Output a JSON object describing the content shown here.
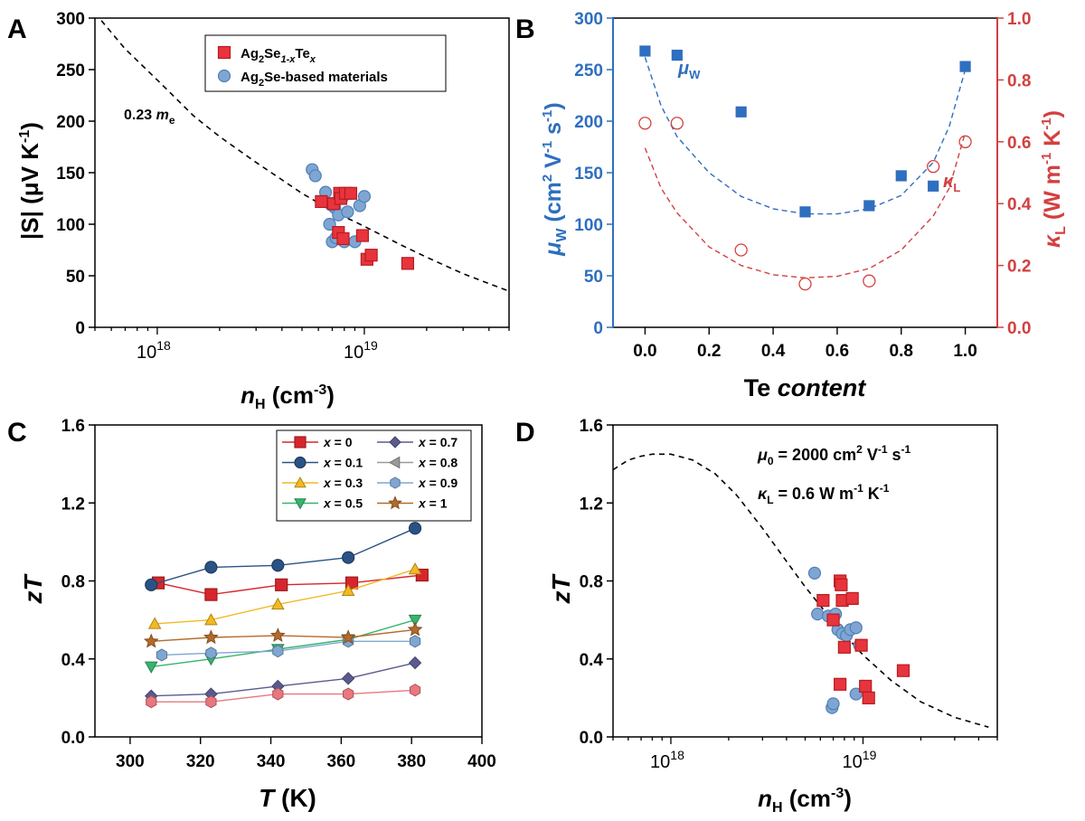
{
  "chart_data": [
    {
      "panel": "A",
      "type": "scatter",
      "xscale": "log",
      "xlim": [
        5e+17,
        5e+19
      ],
      "ylim": [
        0,
        300
      ],
      "xlabel_main": "n",
      "xlabel_sub": "H",
      "xlabel_unit": " (cm",
      "xlabel_exp": "-3",
      "xlabel_close": ")",
      "ylabel": "|S| (μV K",
      "ylabel_exp": "-1",
      "ylabel_close": ")",
      "xticks": [
        {
          "value": 1e+18,
          "base": "10",
          "exp": "18"
        },
        {
          "value": 1e+19,
          "base": "10",
          "exp": "19"
        }
      ],
      "yticks": [
        0,
        50,
        100,
        150,
        200,
        250,
        300
      ],
      "annotation": {
        "text": "0.23 ",
        "italic": "m",
        "sub": "e"
      },
      "legend": [
        {
          "label_main": "Ag",
          "sub1": "2",
          "mid": "Se",
          "sub2": "1-x",
          "mid2": "Te",
          "sub3": "x",
          "color": "#e8343c",
          "marker": "square"
        },
        {
          "label": "Ag2Se-based materials",
          "label_main": "Ag",
          "sub1": "2",
          "rest": "Se-based materials",
          "color": "#7fa6d3",
          "marker": "circle"
        }
      ],
      "series": [
        {
          "name": "Ag2Se-based materials",
          "marker": "circle",
          "color": "#7fa6d3",
          "x": [
            5.6e+18,
            5.8e+18,
            6.5e+18,
            6.8e+18,
            7e+18,
            7.2e+18,
            7.5e+18,
            8e+18,
            8.3e+18,
            8.6e+18,
            9.5e+18,
            9e+18,
            1e+19,
            7.8e+18,
            6.9e+18,
            7.3e+18
          ],
          "y": [
            153,
            147,
            131,
            100,
            83,
            116,
            109,
            83,
            112,
            130,
            118,
            83,
            127,
            125,
            119,
            87
          ]
        },
        {
          "name": "Ag2Se1-xTex",
          "marker": "square",
          "color": "#e8343c",
          "x": [
            6.2e+18,
            7.1e+18,
            7.6e+18,
            7.7e+18,
            8.1e+18,
            8.6e+18,
            9.8e+18,
            1.03e+19,
            1.08e+19,
            1.62e+19,
            7.5e+18,
            7.9e+18
          ],
          "y": [
            122,
            120,
            130,
            125,
            130,
            130,
            89,
            66,
            70,
            62,
            92,
            86
          ]
        }
      ],
      "curve": {
        "type": "dashed",
        "x": [
          5e+17,
          7e+17,
          1e+18,
          1.5e+18,
          2e+18,
          3e+18,
          5e+18,
          7e+18,
          1e+19,
          1.5e+19,
          2e+19,
          3e+19,
          5e+19
        ],
        "y": [
          305,
          270,
          240,
          205,
          185,
          160,
          130,
          113,
          98,
          80,
          68,
          52,
          35
        ]
      }
    },
    {
      "panel": "B",
      "type": "scatter",
      "xlim": [
        -0.1,
        1.1
      ],
      "ylim": [
        0,
        300
      ],
      "ylim2": [
        0,
        1.0
      ],
      "xlabel_main": "Te ",
      "xlabel_italic": "content",
      "ylabel_main": "μ",
      "ylabel_sub": "W",
      "ylabel_rest": " (cm",
      "ylabel_e1": "2",
      "ylabel_r2": " V",
      "ylabel_e2": "-1",
      "ylabel_r3": " s",
      "ylabel_e3": "-1",
      "ylabel_close": ")",
      "ylabel2_main": "κ",
      "ylabel2_sub": "L",
      "ylabel2_rest": " (W m",
      "ylabel2_e1": "-1",
      "ylabel2_r2": " K",
      "ylabel2_e2": "-1",
      "ylabel2_close": ")",
      "xticks": [
        "0.0",
        "0.2",
        "0.4",
        "0.6",
        "0.8",
        "1.0"
      ],
      "xtick_values": [
        0,
        0.2,
        0.4,
        0.6,
        0.8,
        1.0
      ],
      "yticks": [
        0,
        50,
        100,
        150,
        200,
        250,
        300
      ],
      "yticks2": [
        "0.0",
        "0.2",
        "0.4",
        "0.6",
        "0.8",
        "1.0"
      ],
      "ytick2_values": [
        0,
        0.2,
        0.4,
        0.6,
        0.8,
        1.0
      ],
      "label_mu": {
        "main": "μ",
        "sub": "W"
      },
      "label_kappa": {
        "main": "κ",
        "sub": "L"
      },
      "series": [
        {
          "name": "μW",
          "marker": "square",
          "color": "#2e6fbf",
          "axis": "left",
          "x": [
            0.0,
            0.1,
            0.3,
            0.5,
            0.7,
            0.8,
            0.9,
            1.0
          ],
          "y": [
            268,
            264,
            209,
            112,
            118,
            147,
            137,
            253
          ]
        },
        {
          "name": "κL",
          "marker": "open-circle",
          "color": "#d34040",
          "axis": "right",
          "x": [
            0.0,
            0.1,
            0.3,
            0.5,
            0.7,
            0.9,
            1.0
          ],
          "y": [
            0.66,
            0.66,
            0.25,
            0.14,
            0.15,
            0.52,
            0.6
          ]
        }
      ],
      "curves": [
        {
          "color": "#2e6fbf",
          "axis": "left",
          "x": [
            0,
            0.05,
            0.1,
            0.2,
            0.3,
            0.4,
            0.5,
            0.6,
            0.7,
            0.8,
            0.9,
            0.95,
            1.0
          ],
          "y": [
            262,
            215,
            185,
            150,
            127,
            115,
            110,
            110,
            115,
            128,
            160,
            195,
            250
          ]
        },
        {
          "color": "#d34040",
          "axis": "right",
          "x": [
            0,
            0.05,
            0.1,
            0.2,
            0.3,
            0.4,
            0.5,
            0.6,
            0.7,
            0.8,
            0.9,
            0.95,
            1.0
          ],
          "y": [
            0.58,
            0.45,
            0.37,
            0.26,
            0.2,
            0.17,
            0.16,
            0.165,
            0.19,
            0.25,
            0.36,
            0.45,
            0.63
          ]
        }
      ]
    },
    {
      "panel": "C",
      "type": "line",
      "xlim": [
        290,
        400
      ],
      "ylim": [
        0,
        1.6
      ],
      "xlabel_main": "T",
      "xlabel_rest": " (K)",
      "ylabel": "zT",
      "xticks": [
        300,
        320,
        340,
        360,
        380,
        400
      ],
      "yticks": [
        "0.0",
        "0.4",
        "0.8",
        "1.2",
        "1.6"
      ],
      "ytick_values": [
        0,
        0.4,
        0.8,
        1.2,
        1.6
      ],
      "series": [
        {
          "name": "x = 0",
          "label_x": "x",
          "label_val": " = 0",
          "marker": "square",
          "color": "#d7262b",
          "x": [
            308,
            323,
            343,
            363,
            383
          ],
          "y": [
            0.79,
            0.73,
            0.78,
            0.79,
            0.83
          ]
        },
        {
          "name": "x = 0.1",
          "label_x": "x",
          "label_val": " = 0.1",
          "marker": "circle",
          "color": "#2b5284",
          "x": [
            306,
            323,
            342,
            362,
            381
          ],
          "y": [
            0.78,
            0.87,
            0.88,
            0.92,
            1.07
          ]
        },
        {
          "name": "x = 0.3",
          "label_x": "x",
          "label_val": " = 0.3",
          "marker": "triangle-up",
          "color": "#f2b922",
          "x": [
            307,
            323,
            342,
            362,
            381
          ],
          "y": [
            0.58,
            0.6,
            0.68,
            0.75,
            0.86
          ]
        },
        {
          "name": "x = 0.5",
          "label_x": "x",
          "label_val": " = 0.5",
          "marker": "triangle-down",
          "color": "#36b56c",
          "x": [
            306,
            323,
            342,
            362,
            381
          ],
          "y": [
            0.36,
            0.4,
            0.45,
            0.5,
            0.6
          ]
        },
        {
          "name": "x = 0.7",
          "label_x": "x",
          "label_val": " = 0.7",
          "marker": "diamond",
          "color": "#5b5a8f",
          "x": [
            306,
            323,
            342,
            362,
            381
          ],
          "y": [
            0.21,
            0.22,
            0.26,
            0.3,
            0.38
          ]
        },
        {
          "name": "x = 0.8",
          "label_x": "x",
          "label_val": " = 0.8",
          "marker": "triangle-left",
          "color": "#9a9a9a",
          "x": [],
          "y": []
        },
        {
          "name": "x = 0.9",
          "label_x": "x",
          "label_val": " = 0.9",
          "marker": "hexagon",
          "color": "#7fa6d3",
          "x": [
            309,
            323,
            342,
            362,
            381
          ],
          "y": [
            0.42,
            0.43,
            0.44,
            0.49,
            0.49
          ]
        },
        {
          "name": "x = 1",
          "label_x": "x",
          "label_val": " = 1",
          "marker": "star",
          "color": "#b56a2a",
          "x": [
            306,
            323,
            342,
            362,
            381
          ],
          "y": [
            0.49,
            0.51,
            0.52,
            0.51,
            0.55
          ]
        },
        {
          "name": "pink",
          "label_x": "",
          "label_val": "",
          "marker": "hexagon",
          "color": "#e8777f",
          "legend": false,
          "x": [
            306,
            323,
            342,
            362,
            381
          ],
          "y": [
            0.18,
            0.18,
            0.22,
            0.22,
            0.24
          ]
        }
      ]
    },
    {
      "panel": "D",
      "type": "scatter",
      "xscale": "log",
      "xlim": [
        5e+17,
        5e+19
      ],
      "ylim": [
        0,
        1.6
      ],
      "xlabel_main": "n",
      "xlabel_sub": "H",
      "xlabel_unit": " (cm",
      "xlabel_exp": "-3",
      "xlabel_close": ")",
      "ylabel": "zT",
      "xticks": [
        {
          "value": 1e+18,
          "base": "10",
          "exp": "18"
        },
        {
          "value": 1e+19,
          "base": "10",
          "exp": "19"
        }
      ],
      "yticks": [
        "0.0",
        "0.4",
        "0.8",
        "1.2",
        "1.6"
      ],
      "ytick_values": [
        0,
        0.4,
        0.8,
        1.2,
        1.6
      ],
      "annotation1": {
        "main": "μ",
        "sub": "0",
        "rest": " = 2000 cm",
        "e1": "2",
        "r2": " V",
        "e2": "-1",
        "r3": " s",
        "e3": "-1"
      },
      "annotation2": {
        "main": "κ",
        "sub": "L",
        "rest": " = 0.6 W m",
        "e1": "-1",
        "r2": " K",
        "e2": "-1"
      },
      "series": [
        {
          "name": "Ag2Se-based materials",
          "marker": "circle",
          "color": "#7fa6d3",
          "x": [
            5.6e+18,
            5.8e+18,
            6.6e+18,
            7e+18,
            7.2e+18,
            7.4e+18,
            7.8e+18,
            8.2e+18,
            8.6e+18,
            9.2e+18,
            9.6e+18,
            6.9e+18,
            7e+18,
            9.2e+18
          ],
          "y": [
            0.84,
            0.63,
            0.62,
            0.6,
            0.63,
            0.55,
            0.53,
            0.52,
            0.55,
            0.56,
            0.47,
            0.15,
            0.17,
            0.22
          ]
        },
        {
          "name": "Ag2Se1-xTex",
          "marker": "square",
          "color": "#e8343c",
          "x": [
            6.2e+18,
            7e+18,
            7.6e+18,
            7.7e+18,
            7.8e+18,
            8e+18,
            8.8e+18,
            9.8e+18,
            1.03e+19,
            1.07e+19,
            1.62e+19,
            7.6e+18
          ],
          "y": [
            0.7,
            0.6,
            0.8,
            0.78,
            0.7,
            0.46,
            0.71,
            0.47,
            0.26,
            0.2,
            0.34,
            0.27
          ]
        }
      ],
      "curve": {
        "type": "dashed",
        "x": [
          5e+17,
          6e+17,
          7e+17,
          8e+17,
          9e+17,
          1e+18,
          1.3e+18,
          1.7e+18,
          2.2e+18,
          3e+18,
          4e+18,
          5e+18,
          7e+18,
          1e+19,
          1.4e+19,
          2e+19,
          3e+19,
          4.5e+19
        ],
        "y": [
          1.37,
          1.42,
          1.44,
          1.45,
          1.45,
          1.45,
          1.42,
          1.35,
          1.24,
          1.07,
          0.9,
          0.77,
          0.59,
          0.42,
          0.29,
          0.18,
          0.1,
          0.05
        ]
      }
    }
  ],
  "panel_labels": [
    "A",
    "B",
    "C",
    "D"
  ]
}
